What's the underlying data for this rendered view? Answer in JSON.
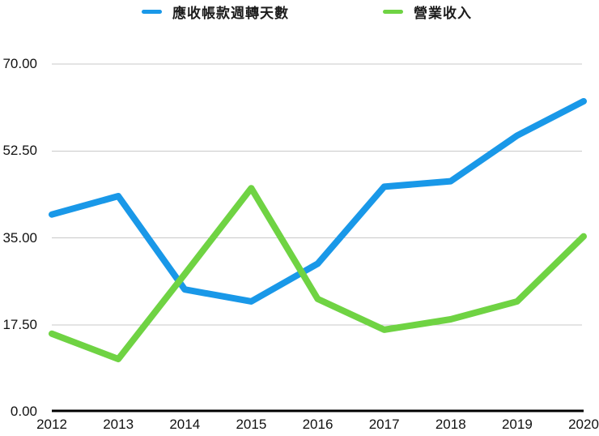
{
  "chart_data": {
    "type": "line",
    "categories": [
      "2012",
      "2013",
      "2014",
      "2015",
      "2016",
      "2017",
      "2018",
      "2019",
      "2020"
    ],
    "series": [
      {
        "name": "應收帳款週轉天數",
        "color": "#1998E8",
        "values": [
          39.7,
          43.4,
          24.6,
          22.2,
          29.8,
          45.3,
          46.4,
          55.6,
          62.5
        ]
      },
      {
        "name": "營業收入",
        "color": "#6FD343",
        "values": [
          15.7,
          10.6,
          27.7,
          45.0,
          22.7,
          16.5,
          18.6,
          22.2,
          35.3
        ]
      }
    ],
    "title": "",
    "xlabel": "",
    "ylabel": "",
    "ylim": [
      0,
      70
    ],
    "yticks": [
      {
        "value": 0,
        "label": "0.00"
      },
      {
        "value": 17.5,
        "label": "17.50"
      },
      {
        "value": 35,
        "label": "35.00"
      },
      {
        "value": 52.5,
        "label": "52.50"
      },
      {
        "value": 70,
        "label": "70.00"
      }
    ],
    "grid": true,
    "legend_position": "top"
  },
  "legend": {
    "items": [
      {
        "label": "應收帳款週轉天數",
        "color": "#1998E8"
      },
      {
        "label": "營業收入",
        "color": "#6FD343"
      }
    ]
  },
  "colors": {
    "background": "#ffffff",
    "gridline": "#c9c9c9",
    "axis": "#000000",
    "text": "#111111"
  }
}
